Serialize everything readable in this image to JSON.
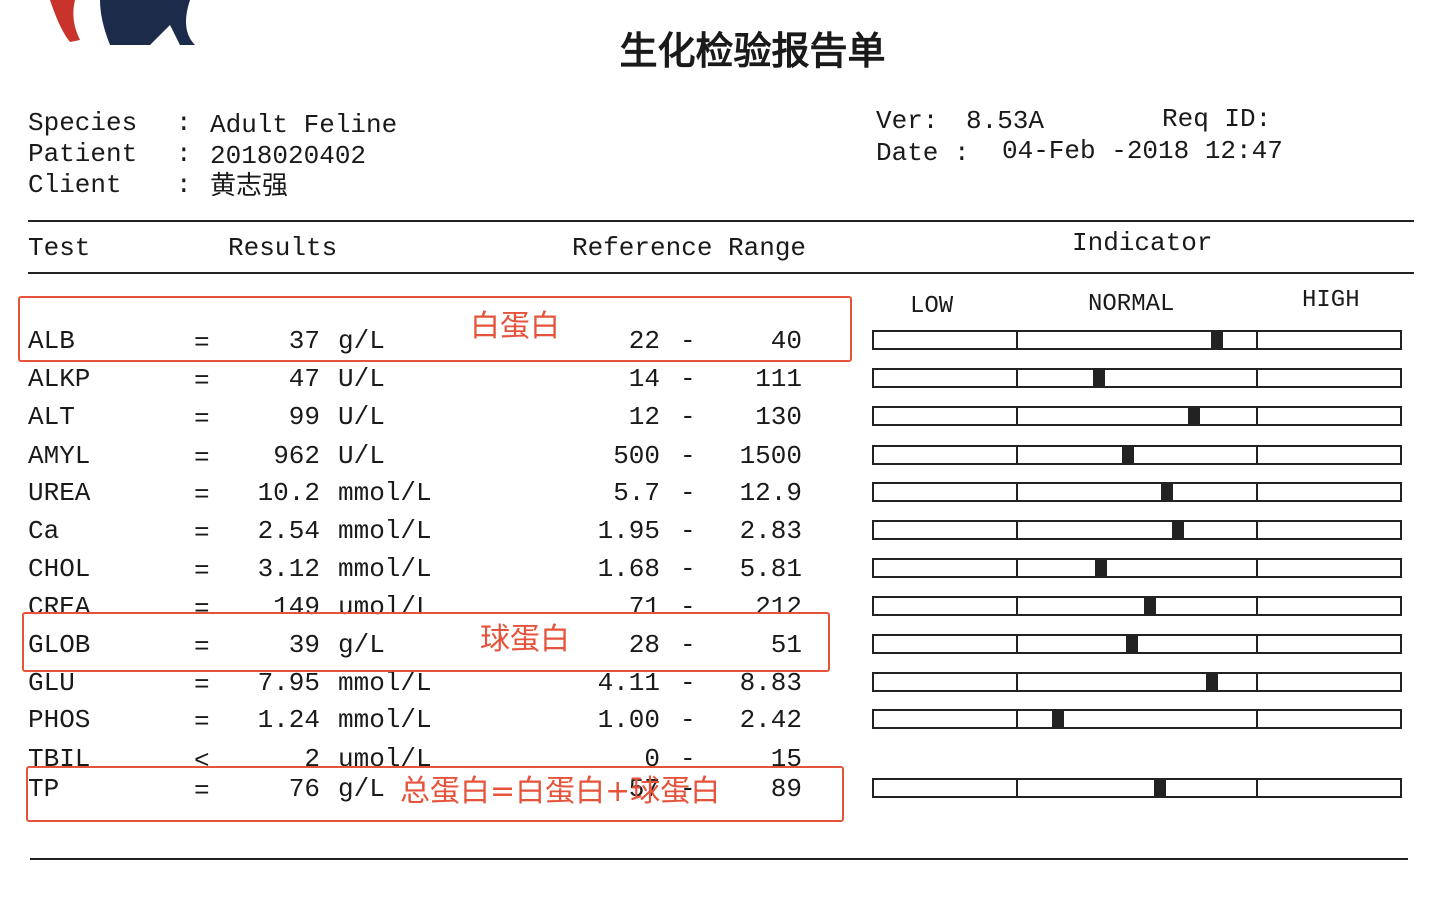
{
  "header": {
    "title": "生化检验报告单"
  },
  "info": {
    "left": [
      {
        "label": "Species",
        "sep": ":",
        "value": "Adult Feline"
      },
      {
        "label": "Patient",
        "sep": ":",
        "value": "2018020402"
      },
      {
        "label": "Client",
        "sep": ":",
        "value": "黄志强"
      }
    ],
    "ver": {
      "label": "Ver:",
      "value": "8.53A"
    },
    "req": {
      "label": "Req ID:"
    },
    "date": {
      "label": "Date :",
      "value": "04-Feb -2018 12:47"
    }
  },
  "table": {
    "columns": [
      "Test",
      "Results",
      "Reference Range",
      "Indicator"
    ],
    "scale": [
      "LOW",
      "NORMAL",
      "HIGH"
    ],
    "range_sep": "-",
    "rows": [
      {
        "test": "ALB",
        "op": "=",
        "result": "37",
        "unit": "g/L",
        "low": "22",
        "high": "40"
      },
      {
        "test": "ALKP",
        "op": "=",
        "result": "47",
        "unit": "U/L",
        "low": "14",
        "high": "111"
      },
      {
        "test": "ALT",
        "op": "=",
        "result": "99",
        "unit": "U/L",
        "low": "12",
        "high": "130"
      },
      {
        "test": "AMYL",
        "op": "=",
        "result": "962",
        "unit": "U/L",
        "low": "500",
        "high": "1500"
      },
      {
        "test": "UREA",
        "op": "=",
        "result": "10.2",
        "unit": "mmol/L",
        "low": "5.7",
        "high": "12.9"
      },
      {
        "test": "Ca",
        "op": "=",
        "result": "2.54",
        "unit": "mmol/L",
        "low": "1.95",
        "high": "2.83"
      },
      {
        "test": "CHOL",
        "op": "=",
        "result": "3.12",
        "unit": "mmol/L",
        "low": "1.68",
        "high": "5.81"
      },
      {
        "test": "CREA",
        "op": "=",
        "result": "149",
        "unit": "umol/L",
        "low": "71",
        "high": "212"
      },
      {
        "test": "GLOB",
        "op": "=",
        "result": "39",
        "unit": "g/L",
        "low": "28",
        "high": "51"
      },
      {
        "test": "GLU",
        "op": "=",
        "result": "7.95",
        "unit": "mmol/L",
        "low": "4.11",
        "high": "8.83"
      },
      {
        "test": "PHOS",
        "op": "=",
        "result": "1.24",
        "unit": "mmol/L",
        "low": "1.00",
        "high": "2.42"
      },
      {
        "test": "TBIL",
        "op": "<",
        "result": "2",
        "unit": "umol/L",
        "low": "0",
        "high": "15"
      },
      {
        "test": "TP",
        "op": "=",
        "result": "76",
        "unit": "g/L",
        "low": "57",
        "high": "89"
      }
    ]
  },
  "annotations": [
    {
      "row": 0,
      "text": "白蛋白"
    },
    {
      "row": 8,
      "text": "球蛋白"
    },
    {
      "row": 12,
      "text": "总蛋白=白蛋白+球蛋白"
    }
  ]
}
